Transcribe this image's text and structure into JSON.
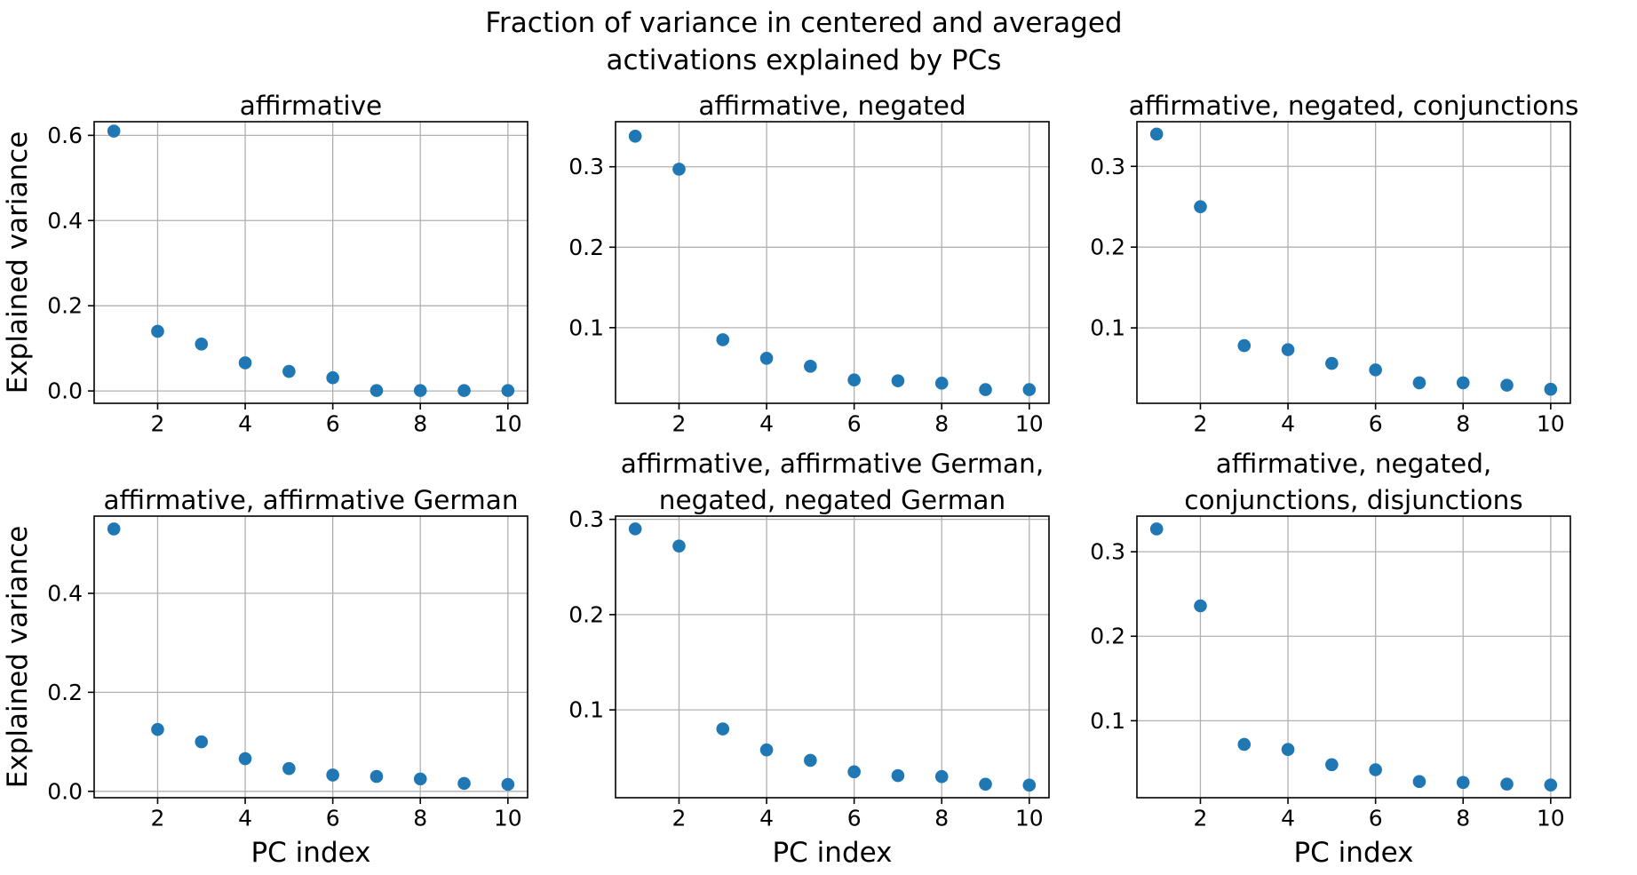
{
  "figure": {
    "title_line1": "Fraction of variance in centered and averaged",
    "title_line2": "activations explained by PCs",
    "background": "#ffffff",
    "text_color": "#000000"
  },
  "chart_data": {
    "type": "scatter",
    "suptitle": "Fraction of variance in centered and averaged activations explained by PCs",
    "marker_color": "#1f77b4",
    "grid_color": "#b0b0b0",
    "spine_color": "#000000",
    "grid": true,
    "legend": "none",
    "x": [
      1,
      2,
      3,
      4,
      5,
      6,
      7,
      8,
      9,
      10
    ],
    "xticks": [
      2,
      4,
      6,
      8,
      10
    ],
    "xtick_labels": [
      "2",
      "4",
      "6",
      "8",
      "10"
    ],
    "xlim": [
      0.55,
      10.45
    ],
    "subplots": [
      {
        "title": "affirmative",
        "title_lines": [
          "affirmative"
        ],
        "row": 0,
        "col": 0,
        "values": [
          0.61,
          0.14,
          0.11,
          0.066,
          0.046,
          0.031,
          0.001,
          0.001,
          0.001,
          0.001
        ],
        "yticks": [
          0.0,
          0.2,
          0.4,
          0.6
        ],
        "ytick_labels": [
          "0.0",
          "0.2",
          "0.4",
          "0.6"
        ],
        "ylim": [
          -0.029,
          0.632
        ],
        "ylabel": "Explained variance",
        "xlabel": ""
      },
      {
        "title": "affirmative, negated",
        "title_lines": [
          "affirmative, negated"
        ],
        "row": 0,
        "col": 1,
        "values": [
          0.338,
          0.297,
          0.085,
          0.062,
          0.052,
          0.035,
          0.034,
          0.031,
          0.023,
          0.023
        ],
        "yticks": [
          0.1,
          0.2,
          0.3
        ],
        "ytick_labels": [
          "0.1",
          "0.2",
          "0.3"
        ],
        "ylim": [
          0.006,
          0.356
        ],
        "ylabel": "",
        "xlabel": ""
      },
      {
        "title": "affirmative, negated, conjunctions",
        "title_lines": [
          "affirmative, negated, conjunctions"
        ],
        "row": 0,
        "col": 2,
        "values": [
          0.34,
          0.25,
          0.078,
          0.073,
          0.056,
          0.048,
          0.032,
          0.032,
          0.029,
          0.024
        ],
        "yticks": [
          0.1,
          0.2,
          0.3
        ],
        "ytick_labels": [
          "0.1",
          "0.2",
          "0.3"
        ],
        "ylim": [
          0.0066,
          0.3553
        ],
        "ylabel": "",
        "xlabel": ""
      },
      {
        "title": "affirmative, affirmative German",
        "title_lines": [
          "affirmative, affirmative German"
        ],
        "row": 1,
        "col": 0,
        "values": [
          0.53,
          0.125,
          0.1,
          0.066,
          0.046,
          0.033,
          0.03,
          0.025,
          0.016,
          0.014
        ],
        "yticks": [
          0.0,
          0.2,
          0.4
        ],
        "ytick_labels": [
          "0.0",
          "0.2",
          "0.4"
        ],
        "ylim": [
          -0.0129,
          0.5559
        ],
        "ylabel": "Explained variance",
        "xlabel": "PC index"
      },
      {
        "title": "affirmative, affirmative German, negated, negated German",
        "title_lines": [
          "affirmative, affirmative German,",
          "negated, negated German"
        ],
        "row": 1,
        "col": 1,
        "values": [
          0.29,
          0.272,
          0.08,
          0.058,
          0.047,
          0.035,
          0.031,
          0.03,
          0.022,
          0.021
        ],
        "yticks": [
          0.1,
          0.2,
          0.3
        ],
        "ytick_labels": [
          "0.1",
          "0.2",
          "0.3"
        ],
        "ylim": [
          0.0078,
          0.3034
        ],
        "ylabel": "",
        "xlabel": "PC index"
      },
      {
        "title": "affirmative, negated, conjunctions, disjunctions",
        "title_lines": [
          "affirmative, negated,",
          "conjunctions, disjunctions"
        ],
        "row": 1,
        "col": 2,
        "values": [
          0.327,
          0.236,
          0.072,
          0.066,
          0.048,
          0.042,
          0.028,
          0.027,
          0.025,
          0.024
        ],
        "yticks": [
          0.1,
          0.2,
          0.3
        ],
        "ytick_labels": [
          "0.1",
          "0.2",
          "0.3"
        ],
        "ylim": [
          0.0089,
          0.3422
        ],
        "ylabel": "",
        "xlabel": "PC index"
      }
    ]
  }
}
